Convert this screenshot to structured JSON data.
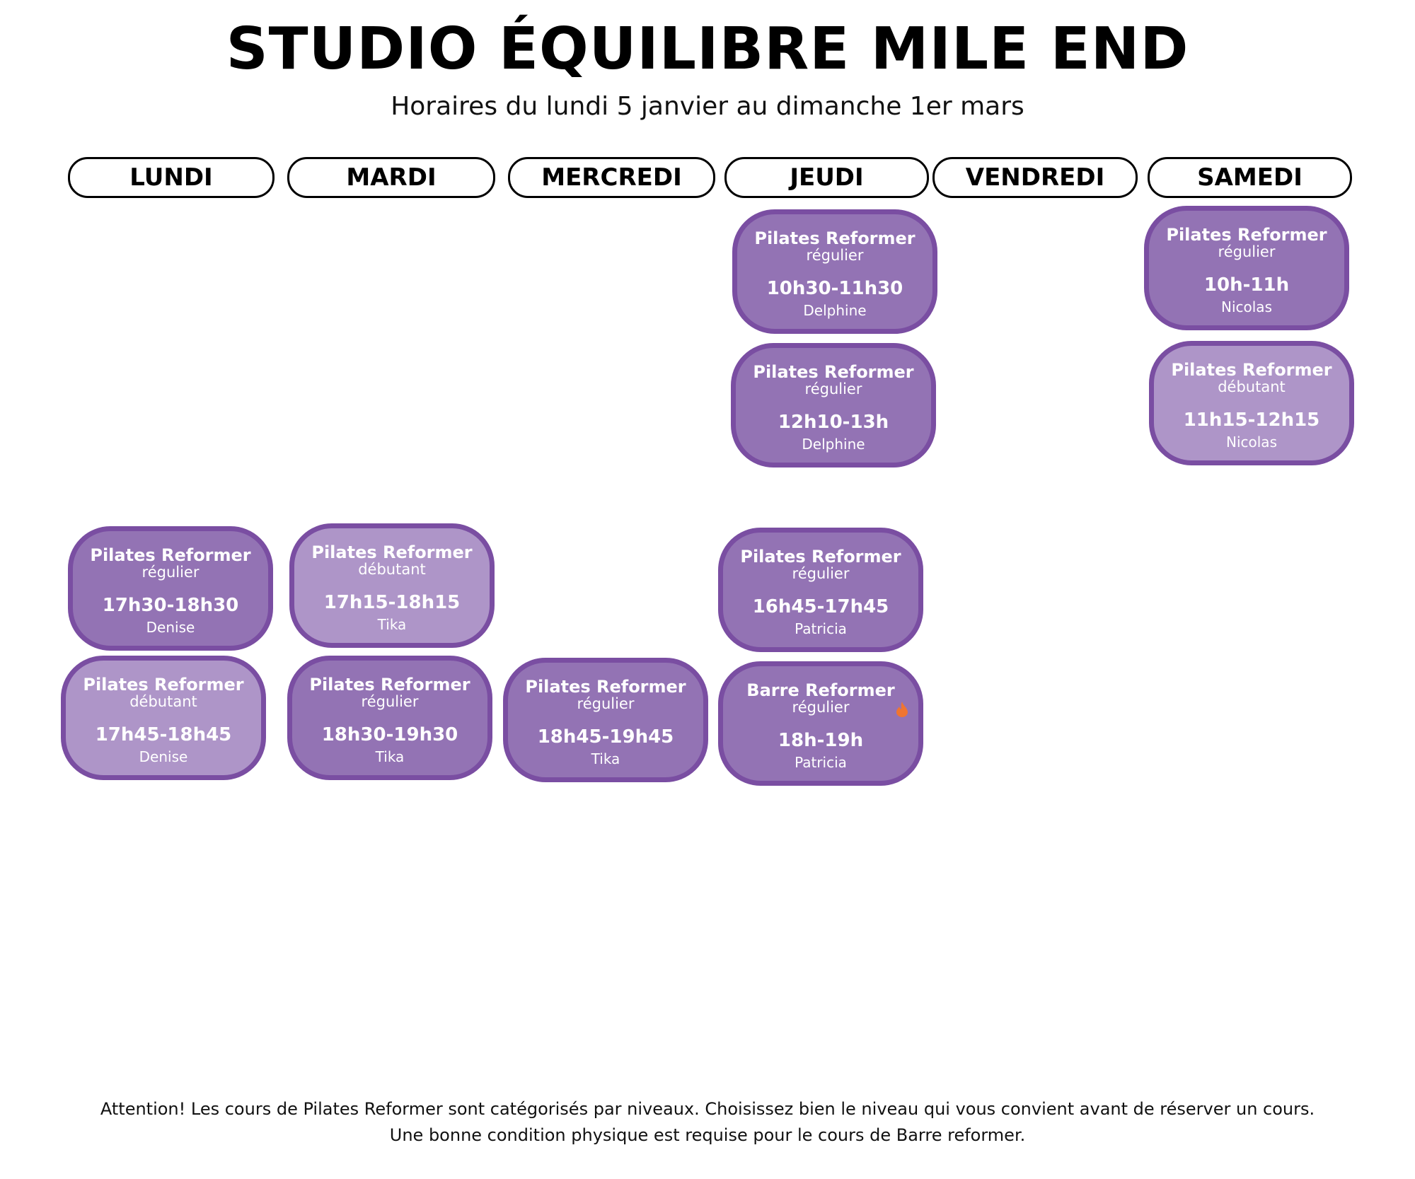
{
  "header": {
    "title": "STUDIO ÉQUILIBRE MILE END",
    "subtitle": "Horaires du lundi 5 janvier au dimanche 1er mars"
  },
  "days": [
    "LUNDI",
    "MARDI",
    "MERCREDI",
    "JEUDI",
    "VENDREDI",
    "SAMEDI"
  ],
  "colors": {
    "regular": "#9373b4",
    "beginner": "#ae95c8",
    "border": "#7a4ea2",
    "flame": "#f07530"
  },
  "classes": [
    {
      "day": "JEUDI",
      "title": "Pilates Reformer",
      "level": "régulier",
      "time": "10h30-11h30",
      "teacher": "Delphine"
    },
    {
      "day": "JEUDI",
      "title": "Pilates Reformer",
      "level": "régulier",
      "time": "12h10-13h",
      "teacher": "Delphine"
    },
    {
      "day": "SAMEDI",
      "title": "Pilates Reformer",
      "level": "régulier",
      "time": "10h-11h",
      "teacher": "Nicolas"
    },
    {
      "day": "SAMEDI",
      "title": "Pilates Reformer",
      "level": "débutant",
      "time": "11h15-12h15",
      "teacher": "Nicolas"
    },
    {
      "day": "LUNDI",
      "title": "Pilates Reformer",
      "level": "régulier",
      "time": "17h30-18h30",
      "teacher": "Denise"
    },
    {
      "day": "LUNDI",
      "title": "Pilates Reformer",
      "level": "débutant",
      "time": "17h45-18h45",
      "teacher": "Denise"
    },
    {
      "day": "MARDI",
      "title": "Pilates Reformer",
      "level": "débutant",
      "time": "17h15-18h15",
      "teacher": "Tika"
    },
    {
      "day": "MARDI",
      "title": "Pilates Reformer",
      "level": "régulier",
      "time": "18h30-19h30",
      "teacher": "Tika"
    },
    {
      "day": "MERCREDI",
      "title": "Pilates Reformer",
      "level": "régulier",
      "time": "18h45-19h45",
      "teacher": "Tika"
    },
    {
      "day": "JEUDI",
      "title": "Pilates Reformer",
      "level": "régulier",
      "time": "16h45-17h45",
      "teacher": "Patricia"
    },
    {
      "day": "JEUDI",
      "title": "Barre Reformer",
      "level": "régulier",
      "time": "18h-19h",
      "teacher": "Patricia",
      "icon": "flame-icon"
    }
  ],
  "footer": {
    "line1": "Attention! Les cours de Pilates Reformer sont catégorisés par niveaux. Choisissez bien le niveau qui vous convient avant de réserver un cours.",
    "line2": "Une bonne condition physique est requise pour le cours de Barre reformer."
  }
}
